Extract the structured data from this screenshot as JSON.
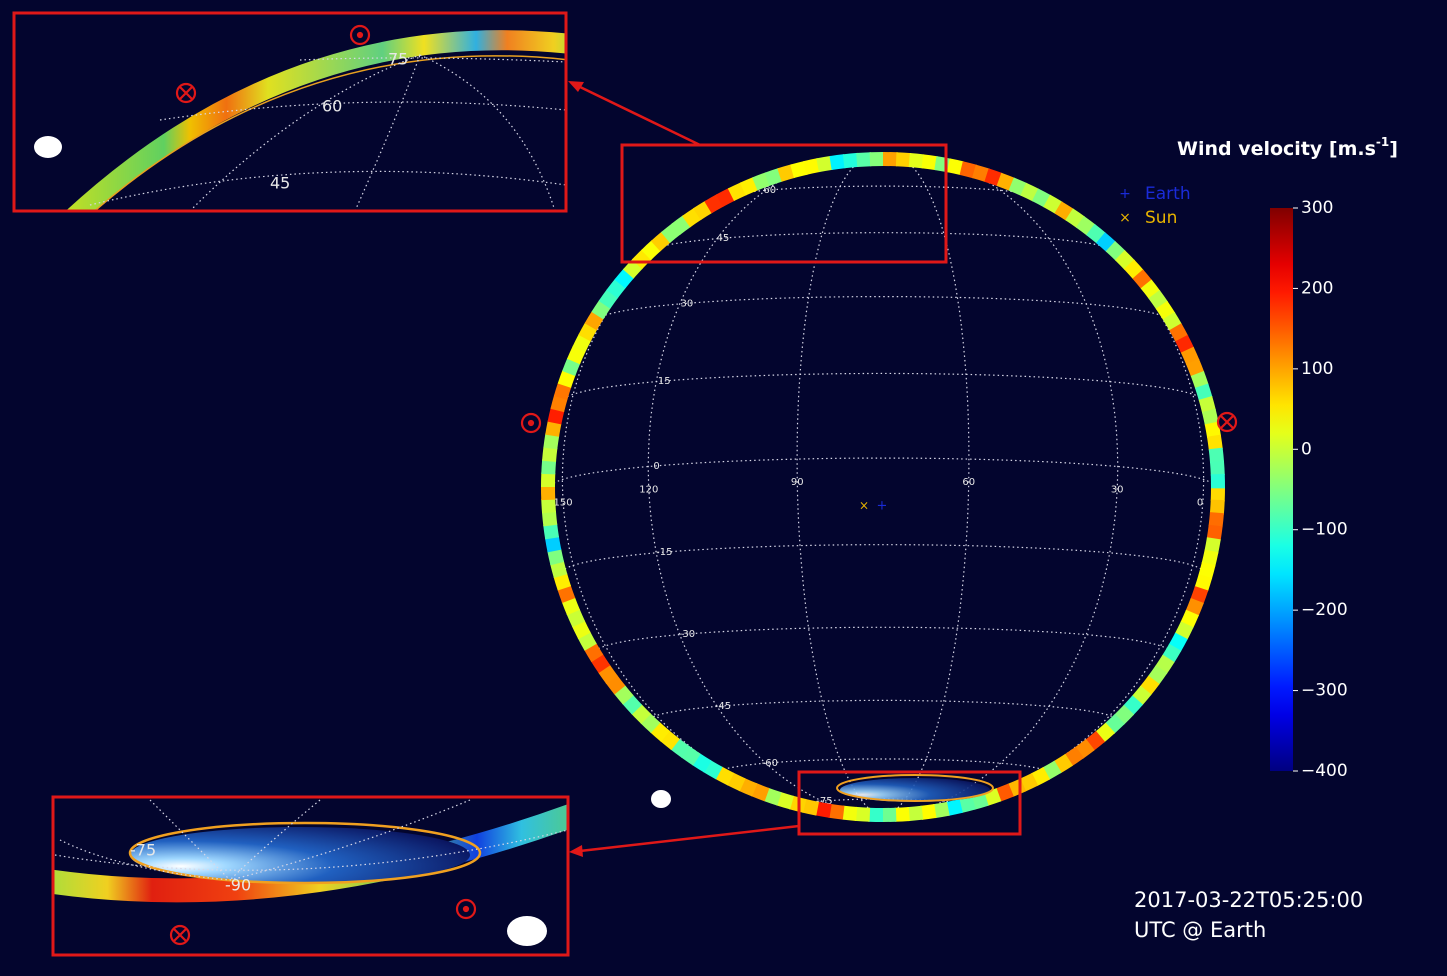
{
  "colorbar": {
    "title": "Wind velocity [m.s",
    "title_exponent": "-1",
    "title_close": "]",
    "range": [
      -400,
      300
    ],
    "ticks": [
      300,
      200,
      100,
      0,
      {
        "value": -100,
        "label": "−100"
      },
      {
        "value": -200,
        "label": "−200"
      },
      {
        "value": -300,
        "label": "−300"
      },
      {
        "value": -400,
        "label": "−400"
      }
    ]
  },
  "legend": [
    {
      "name": "Earth",
      "color": "#1a2bd8",
      "marker": "+"
    },
    {
      "name": "Sun",
      "color": "#e8b400",
      "marker": "×"
    }
  ],
  "globe": {
    "latitude_labels": [
      75,
      60,
      45,
      30,
      15,
      0,
      -15,
      -30,
      -45,
      -60,
      -75,
      -90
    ],
    "longitude_labels": [
      150,
      120,
      90,
      60,
      30,
      0
    ]
  },
  "top_inset": {
    "labels": [
      75,
      60,
      45
    ]
  },
  "bottom_inset": {
    "labels": [
      -75,
      -90
    ]
  },
  "timestamp": [
    "2017-03-22T05:25:00",
    "UTC @ Earth"
  ]
}
